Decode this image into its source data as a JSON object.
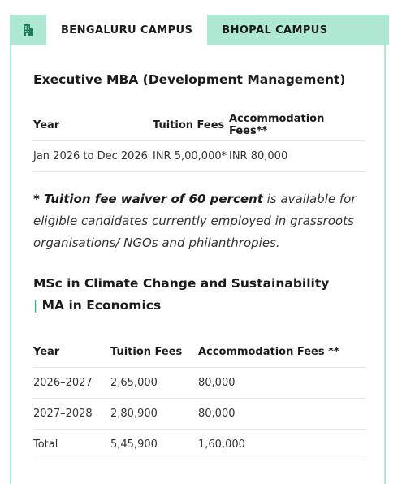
{
  "tabs": [
    {
      "label": "BENGALURU CAMPUS",
      "active": true
    },
    {
      "label": "BHOPAL CAMPUS",
      "active": false
    }
  ],
  "icon": "building-icon",
  "colors": {
    "tab_bar": "#aee8d3",
    "separator": "#2bb38a"
  },
  "program1": {
    "title": "Executive MBA (Development Management)",
    "headers": [
      "Year",
      "Tuition Fees",
      "Accommodation Fees**"
    ],
    "rows": [
      [
        "Jan 2026 to Dec 2026",
        "INR 5,00,000*",
        "INR 80,000"
      ]
    ]
  },
  "note": {
    "prefix": "* ",
    "bold": "Tuition fee waiver of 60 percent",
    "rest": " is available for eligible candidates currently employed in grassroots organisations/ NGOs and philanthropies."
  },
  "program2": {
    "title_part1": "MSc in Climate Change and Sustainability",
    "separator": "|",
    "title_part2": "MA in Economics",
    "headers": [
      "Year",
      "Tuition Fees",
      "Accommodation Fees **"
    ],
    "rows": [
      [
        "2026–2027",
        "2,65,000",
        "80,000"
      ],
      [
        "2027–2028",
        "2,80,900",
        "80,000"
      ],
      [
        "Total",
        "5,45,900",
        "1,60,000"
      ]
    ]
  }
}
